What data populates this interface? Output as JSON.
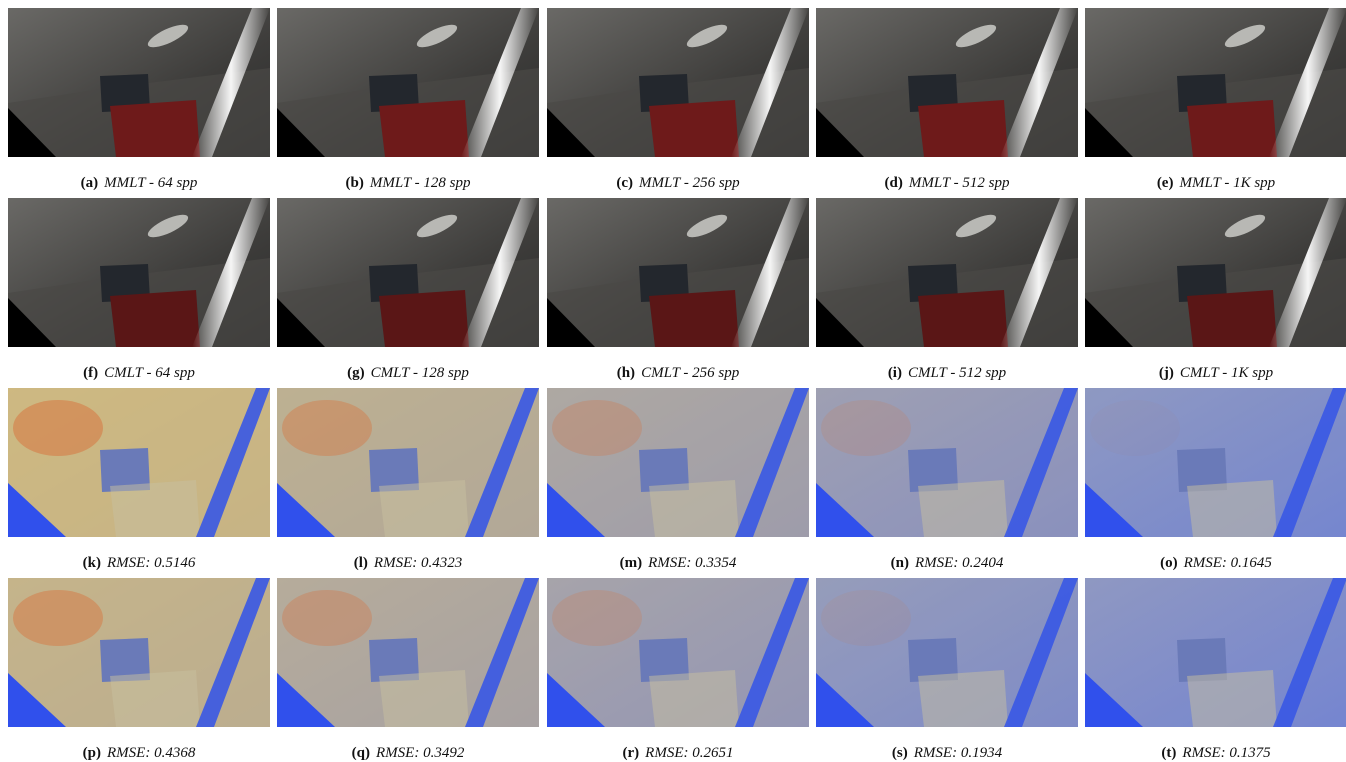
{
  "panels": [
    {
      "label": "(a)",
      "caption": "MMLT - 64 spp"
    },
    {
      "label": "(b)",
      "caption": "MMLT - 128 spp"
    },
    {
      "label": "(c)",
      "caption": "MMLT - 256 spp"
    },
    {
      "label": "(d)",
      "caption": "MMLT - 512 spp"
    },
    {
      "label": "(e)",
      "caption": "MMLT - 1K spp"
    },
    {
      "label": "(f)",
      "caption": "CMLT - 64 spp"
    },
    {
      "label": "(g)",
      "caption": "CMLT - 128 spp"
    },
    {
      "label": "(h)",
      "caption": "CMLT - 256 spp"
    },
    {
      "label": "(i)",
      "caption": "CMLT - 512 spp"
    },
    {
      "label": "(j)",
      "caption": "CMLT - 1K spp"
    },
    {
      "label": "(k)",
      "caption": "RMSE: 0.5146"
    },
    {
      "label": "(l)",
      "caption": "RMSE: 0.4323"
    },
    {
      "label": "(m)",
      "caption": "RMSE: 0.3354"
    },
    {
      "label": "(n)",
      "caption": "RMSE: 0.2404"
    },
    {
      "label": "(o)",
      "caption": "RMSE: 0.1645"
    },
    {
      "label": "(p)",
      "caption": "RMSE: 0.4368"
    },
    {
      "label": "(q)",
      "caption": "RMSE: 0.3492"
    },
    {
      "label": "(r)",
      "caption": "RMSE: 0.2651"
    },
    {
      "label": "(s)",
      "caption": "RMSE: 0.1934"
    },
    {
      "label": "(t)",
      "caption": "RMSE: 0.1375"
    }
  ]
}
